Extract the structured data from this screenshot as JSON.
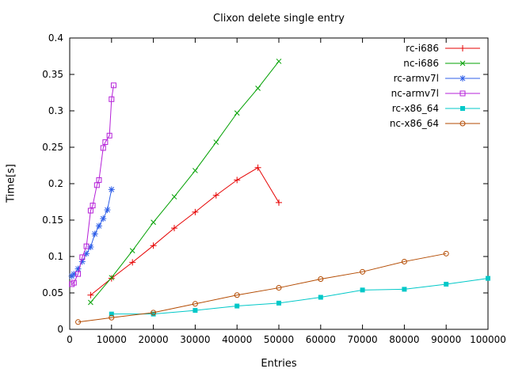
{
  "chart_data": {
    "type": "line",
    "title": "Clixon delete single entry",
    "xlabel": "Entries",
    "ylabel": "Time[s]",
    "xlim": [
      0,
      100000
    ],
    "ylim": [
      0,
      0.4
    ],
    "grid": false,
    "legend_position": "top-right-inside",
    "xticks": {
      "values": [
        0,
        10000,
        20000,
        30000,
        40000,
        50000,
        60000,
        70000,
        80000,
        90000,
        100000
      ],
      "labels": [
        "0",
        "10000",
        "20000",
        "30000",
        "40000",
        "50000",
        "60000",
        "70000",
        "80000",
        "90000",
        "100000"
      ]
    },
    "yticks": {
      "values": [
        0,
        0.05,
        0.1,
        0.15,
        0.2,
        0.25,
        0.3,
        0.35,
        0.4
      ],
      "labels": [
        "0",
        "0.05",
        "0.1",
        "0.15",
        "0.2",
        "0.25",
        "0.3",
        "0.35",
        "0.4"
      ]
    },
    "series": [
      {
        "name": "rc-i686",
        "color": "#e60000",
        "marker": "plus",
        "x": [
          5000,
          10000,
          15000,
          20000,
          25000,
          30000,
          35000,
          40000,
          45000,
          50000
        ],
        "y": [
          0.047,
          0.07,
          0.092,
          0.115,
          0.139,
          0.161,
          0.184,
          0.205,
          0.222,
          0.174
        ]
      },
      {
        "name": "nc-i686",
        "color": "#00a000",
        "marker": "cross",
        "x": [
          5000,
          10000,
          15000,
          20000,
          25000,
          30000,
          35000,
          40000,
          45000,
          50000
        ],
        "y": [
          0.037,
          0.071,
          0.108,
          0.147,
          0.182,
          0.218,
          0.257,
          0.297,
          0.331,
          0.368
        ]
      },
      {
        "name": "rc-armv7l",
        "color": "#2f5fe8",
        "marker": "asterisk",
        "x": [
          500,
          1000,
          2000,
          3000,
          4000,
          5000,
          6000,
          7000,
          8000,
          9000,
          10000
        ],
        "y": [
          0.073,
          0.076,
          0.083,
          0.093,
          0.104,
          0.113,
          0.131,
          0.142,
          0.152,
          0.164,
          0.192
        ]
      },
      {
        "name": "nc-armv7l",
        "color": "#b520d8",
        "marker": "square-open",
        "x": [
          500,
          1000,
          2000,
          3000,
          4000,
          5000,
          5500,
          6500,
          7000,
          8000,
          8500,
          9500,
          10000,
          10500
        ],
        "y": [
          0.062,
          0.064,
          0.076,
          0.099,
          0.114,
          0.163,
          0.17,
          0.198,
          0.205,
          0.249,
          0.257,
          0.266,
          0.316,
          0.335
        ]
      },
      {
        "name": "rc-x86_64",
        "color": "#00c8c8",
        "marker": "square-filled",
        "x": [
          10000,
          20000,
          30000,
          40000,
          50000,
          60000,
          70000,
          80000,
          90000,
          100000
        ],
        "y": [
          0.021,
          0.021,
          0.026,
          0.032,
          0.036,
          0.044,
          0.054,
          0.055,
          0.062,
          0.07
        ]
      },
      {
        "name": "nc-x86_64",
        "color": "#b34a00",
        "marker": "circle-open",
        "x": [
          2000,
          10000,
          20000,
          30000,
          40000,
          50000,
          60000,
          70000,
          80000,
          90000
        ],
        "y": [
          0.01,
          0.016,
          0.023,
          0.035,
          0.047,
          0.057,
          0.069,
          0.079,
          0.093,
          0.104
        ]
      }
    ]
  }
}
